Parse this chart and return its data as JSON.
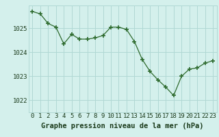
{
  "x": [
    0,
    1,
    2,
    3,
    4,
    5,
    6,
    7,
    8,
    9,
    10,
    11,
    12,
    13,
    14,
    15,
    16,
    17,
    18,
    19,
    20,
    21,
    22,
    23
  ],
  "y": [
    1025.7,
    1025.6,
    1025.2,
    1025.05,
    1024.35,
    1024.75,
    1024.55,
    1024.55,
    1024.6,
    1024.7,
    1025.05,
    1025.05,
    1024.95,
    1024.45,
    1023.7,
    1023.2,
    1022.85,
    1022.55,
    1022.2,
    1023.0,
    1023.3,
    1023.35,
    1023.55,
    1023.65
  ],
  "line_color": "#2d6a2d",
  "marker": "+",
  "marker_size": 4,
  "marker_color": "#2d6a2d",
  "background_color": "#d4f0ec",
  "grid_color": "#b0d8d4",
  "xlabel": "Graphe pression niveau de la mer (hPa)",
  "xlabel_fontsize": 7.5,
  "tick_fontsize": 6.5,
  "ylim": [
    1021.5,
    1025.95
  ],
  "yticks": [
    1022,
    1023,
    1024,
    1025
  ],
  "xticks": [
    0,
    1,
    2,
    3,
    4,
    5,
    6,
    7,
    8,
    9,
    10,
    11,
    12,
    13,
    14,
    15,
    16,
    17,
    18,
    19,
    20,
    21,
    22,
    23
  ]
}
